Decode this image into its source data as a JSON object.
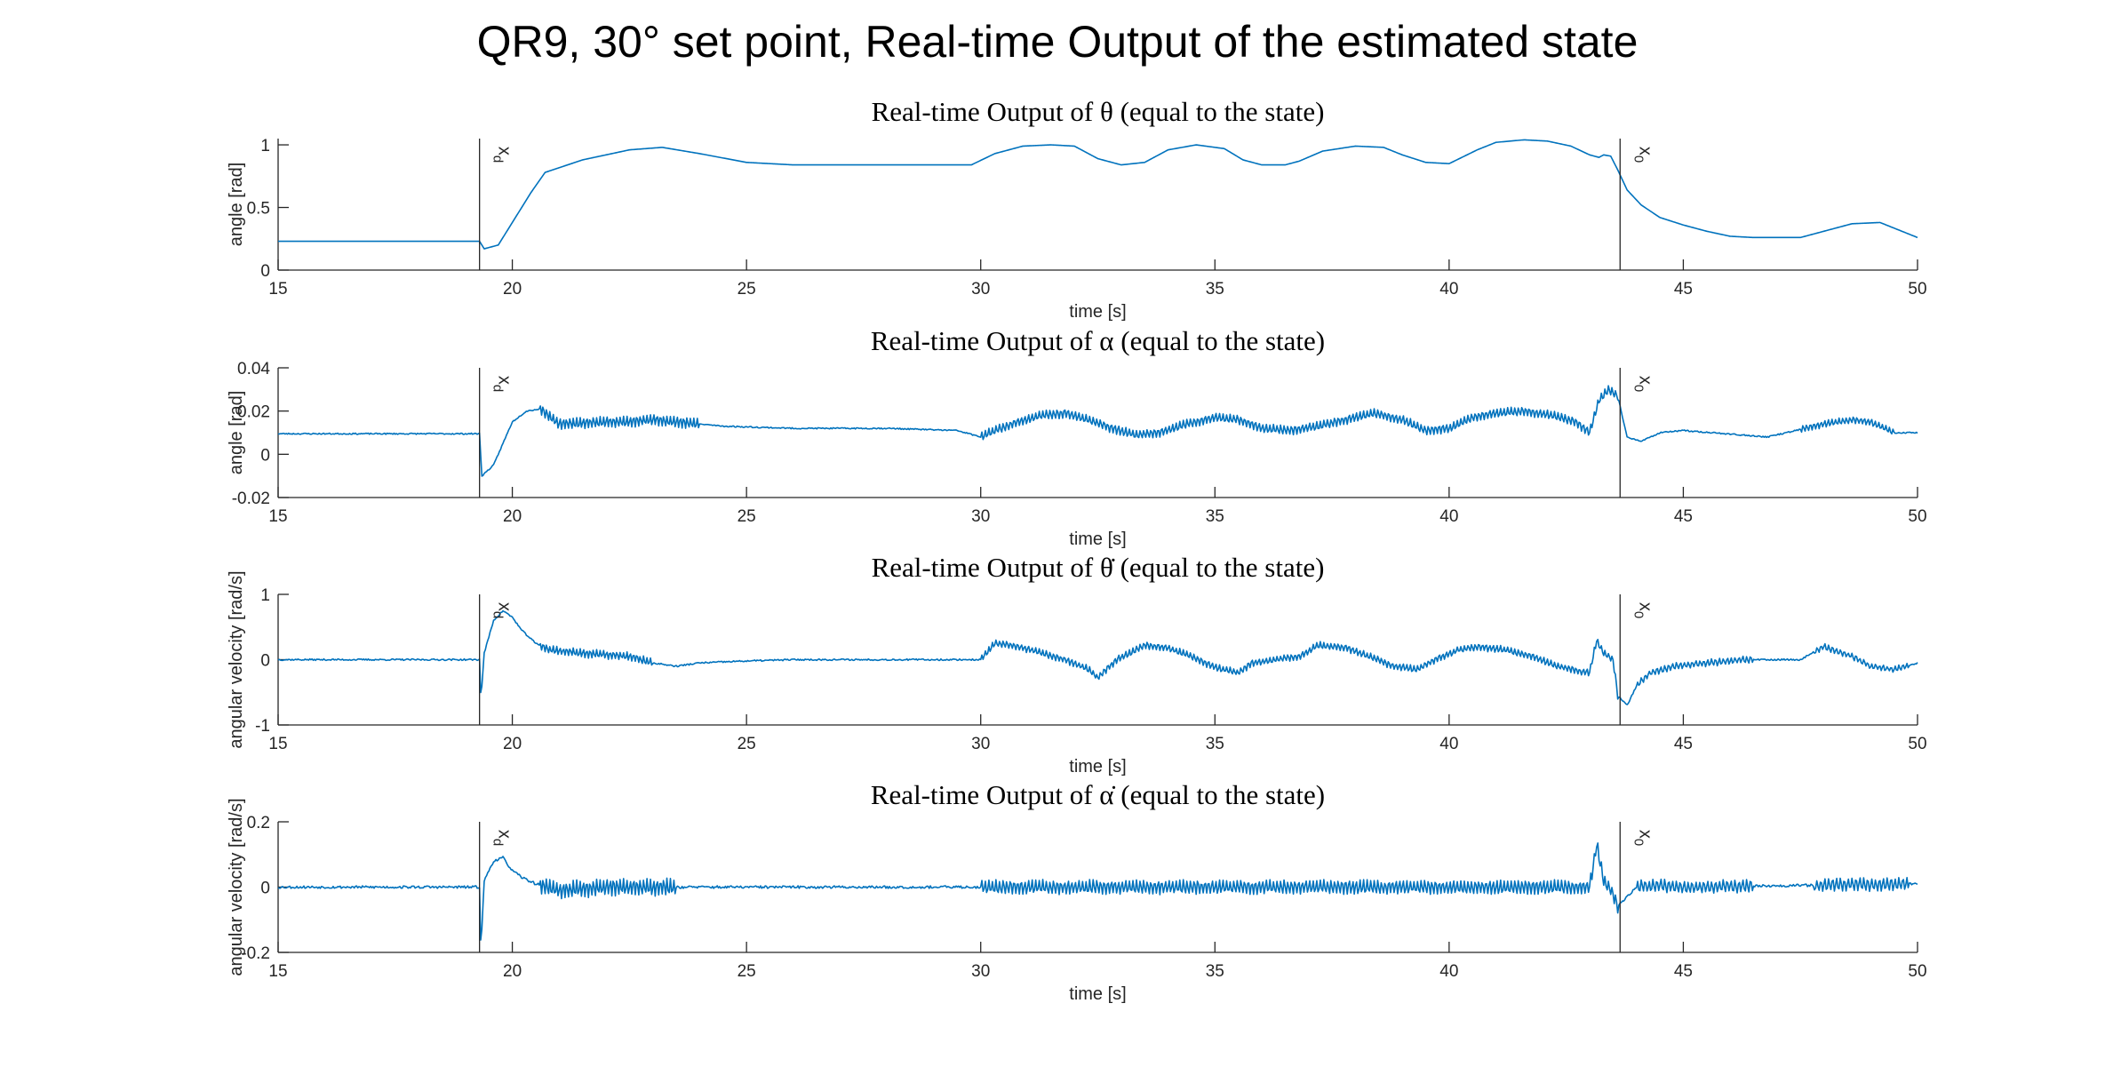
{
  "figure_title": "QR9, 30° set point, Real-time Output of the estimated state",
  "colors": {
    "line": "#0072BD",
    "axes": "#262626",
    "marker": "#262626",
    "background": "#ffffff"
  },
  "chart_data": [
    {
      "type": "line",
      "title": "Real-time Output of θ (equal to the state)",
      "xlabel": "time [s]",
      "ylabel": "angle [rad]",
      "xlim": [
        15,
        50
      ],
      "ylim": [
        0,
        1.05
      ],
      "xticks": [
        15,
        20,
        25,
        30,
        35,
        40,
        45,
        50
      ],
      "xticklabels": [
        "15",
        "20",
        "25",
        "30",
        "35",
        "40",
        "45",
        "50"
      ],
      "yticks": [
        0,
        0.5,
        1
      ],
      "yticklabels": [
        "0",
        "0.5",
        "1"
      ],
      "grid": false,
      "series": [
        {
          "x": [
            15,
            19.3,
            19.4,
            19.7,
            20.0,
            20.4,
            20.7,
            21.5,
            22.5,
            23.2,
            24.0,
            25.0,
            26.0,
            27.5,
            29.0,
            29.8,
            30.3,
            30.9,
            31.5,
            32.0,
            32.5,
            33.0,
            33.5,
            34.0,
            34.6,
            35.2,
            35.6,
            36.0,
            36.5,
            36.8,
            37.3,
            38.0,
            38.6,
            39.0,
            39.5,
            40.0,
            40.6,
            41.0,
            41.6,
            42.1,
            42.6,
            43.0,
            43.2,
            43.3,
            43.45,
            43.6,
            43.8,
            44.1,
            44.5,
            45.0,
            45.5,
            46.0,
            46.5,
            47.0,
            47.5,
            48.0,
            48.6,
            49.2,
            49.6,
            50.0
          ],
          "y": [
            0.23,
            0.23,
            0.17,
            0.2,
            0.38,
            0.62,
            0.78,
            0.88,
            0.96,
            0.98,
            0.93,
            0.86,
            0.84,
            0.84,
            0.84,
            0.84,
            0.93,
            0.99,
            1.0,
            0.99,
            0.89,
            0.84,
            0.86,
            0.96,
            1.0,
            0.97,
            0.88,
            0.84,
            0.84,
            0.87,
            0.95,
            0.99,
            0.98,
            0.92,
            0.86,
            0.85,
            0.96,
            1.02,
            1.04,
            1.03,
            0.99,
            0.92,
            0.9,
            0.92,
            0.91,
            0.8,
            0.64,
            0.52,
            0.42,
            0.36,
            0.31,
            0.27,
            0.26,
            0.26,
            0.26,
            0.31,
            0.37,
            0.38,
            0.32,
            0.26
          ]
        }
      ],
      "markers": [
        {
          "x": 19.3,
          "label": "x",
          "sub": "d"
        },
        {
          "x": 43.65,
          "label": "x",
          "sub": "0"
        }
      ],
      "noise": {
        "seed": 11,
        "base": 0.0,
        "bands": []
      }
    },
    {
      "type": "line",
      "title": "Real-time Output of α (equal to the state)",
      "xlabel": "time [s]",
      "ylabel": "angle [rad]",
      "xlim": [
        15,
        50
      ],
      "ylim": [
        -0.02,
        0.04
      ],
      "xticks": [
        15,
        20,
        25,
        30,
        35,
        40,
        45,
        50
      ],
      "xticklabels": [
        "15",
        "20",
        "25",
        "30",
        "35",
        "40",
        "45",
        "50"
      ],
      "yticks": [
        -0.02,
        0,
        0.02,
        0.04
      ],
      "yticklabels": [
        "-0.02",
        "0",
        "0.02",
        "0.04"
      ],
      "grid": false,
      "series": [
        {
          "x": [
            15,
            19.3,
            19.35,
            19.6,
            19.8,
            20.0,
            20.3,
            20.6,
            21.0,
            21.5,
            22.0,
            22.5,
            23.0,
            23.5,
            24.5,
            26.0,
            28.0,
            29.5,
            30.0,
            30.3,
            30.8,
            31.3,
            31.8,
            32.3,
            32.8,
            33.3,
            33.8,
            34.4,
            35.0,
            35.5,
            36.0,
            36.6,
            37.2,
            37.8,
            38.4,
            39.0,
            39.5,
            40.0,
            40.5,
            41.0,
            41.6,
            42.2,
            42.7,
            43.0,
            43.2,
            43.4,
            43.6,
            43.8,
            44.1,
            44.5,
            45.0,
            45.6,
            46.2,
            46.8,
            47.4,
            48.0,
            48.6,
            49.0,
            49.5,
            50.0
          ],
          "y": [
            0.0095,
            0.0095,
            -0.01,
            -0.005,
            0.005,
            0.015,
            0.02,
            0.021,
            0.014,
            0.0145,
            0.015,
            0.015,
            0.016,
            0.015,
            0.013,
            0.012,
            0.012,
            0.011,
            0.008,
            0.011,
            0.015,
            0.018,
            0.019,
            0.016,
            0.012,
            0.009,
            0.01,
            0.014,
            0.017,
            0.016,
            0.012,
            0.011,
            0.013,
            0.016,
            0.019,
            0.016,
            0.011,
            0.012,
            0.017,
            0.019,
            0.02,
            0.018,
            0.015,
            0.01,
            0.025,
            0.03,
            0.027,
            0.008,
            0.006,
            0.01,
            0.011,
            0.01,
            0.009,
            0.008,
            0.011,
            0.014,
            0.016,
            0.015,
            0.01,
            0.01
          ]
        }
      ],
      "markers": [
        {
          "x": 19.3,
          "label": "x",
          "sub": "d"
        },
        {
          "x": 43.65,
          "label": "x",
          "sub": "0"
        }
      ],
      "noise": {
        "seed": 23,
        "base": 0.0003,
        "bands": [
          {
            "from": 20.6,
            "to": 24.0,
            "amp": 0.0025,
            "freq": 14
          },
          {
            "from": 30.0,
            "to": 43.6,
            "amp": 0.002,
            "freq": 13
          },
          {
            "from": 47.5,
            "to": 49.5,
            "amp": 0.0015,
            "freq": 13
          }
        ]
      }
    },
    {
      "type": "line",
      "title": "Real-time Output of θ̇ (equal to the state)",
      "xlabel": "time [s]",
      "ylabel": "angular velocity [rad/s]",
      "xlim": [
        15,
        50
      ],
      "ylim": [
        -1,
        1
      ],
      "xticks": [
        15,
        20,
        25,
        30,
        35,
        40,
        45,
        50
      ],
      "xticklabels": [
        "15",
        "20",
        "25",
        "30",
        "35",
        "40",
        "45",
        "50"
      ],
      "yticks": [
        -1,
        0,
        1
      ],
      "yticklabels": [
        "-1",
        "0",
        "1"
      ],
      "grid": false,
      "series": [
        {
          "x": [
            15,
            19.3,
            19.33,
            19.4,
            19.6,
            19.8,
            20.0,
            20.2,
            20.5,
            20.8,
            21.5,
            22.5,
            23.0,
            23.5,
            24.0,
            25.0,
            26.0,
            27.5,
            29.5,
            30.0,
            30.3,
            30.8,
            31.3,
            31.8,
            32.3,
            32.5,
            32.9,
            33.5,
            34.0,
            34.5,
            35.0,
            35.5,
            35.8,
            36.3,
            36.8,
            37.2,
            37.8,
            38.4,
            38.8,
            39.3,
            39.7,
            40.2,
            40.6,
            41.2,
            41.8,
            42.3,
            42.8,
            43.0,
            43.15,
            43.3,
            43.5,
            43.6,
            43.8,
            44.0,
            44.3,
            44.8,
            45.5,
            46.3,
            47.0,
            47.5,
            48.0,
            48.6,
            49.0,
            49.5,
            50.0
          ],
          "y": [
            0.0,
            0.0,
            -0.6,
            0.1,
            0.6,
            0.75,
            0.65,
            0.45,
            0.25,
            0.15,
            0.1,
            0.05,
            -0.05,
            -0.1,
            -0.05,
            -0.02,
            0.0,
            0.0,
            0.0,
            0.0,
            0.25,
            0.2,
            0.1,
            0.0,
            -0.15,
            -0.28,
            0.0,
            0.22,
            0.18,
            0.05,
            -0.12,
            -0.2,
            -0.05,
            0.0,
            0.05,
            0.22,
            0.18,
            0.02,
            -0.1,
            -0.15,
            0.0,
            0.15,
            0.2,
            0.15,
            0.05,
            -0.1,
            -0.18,
            -0.2,
            0.3,
            0.1,
            0.0,
            -0.55,
            -0.7,
            -0.4,
            -0.2,
            -0.1,
            -0.05,
            0.0,
            0.0,
            0.0,
            0.2,
            0.05,
            -0.1,
            -0.15,
            -0.05
          ]
        }
      ],
      "markers": [
        {
          "x": 19.3,
          "label": "x",
          "sub": "d"
        },
        {
          "x": 43.65,
          "label": "x",
          "sub": "0"
        }
      ],
      "noise": {
        "seed": 37,
        "base": 0.012,
        "bands": [
          {
            "from": 20.6,
            "to": 23.0,
            "amp": 0.06,
            "freq": 14
          },
          {
            "from": 30.0,
            "to": 43.6,
            "amp": 0.05,
            "freq": 13
          },
          {
            "from": 44.0,
            "to": 46.5,
            "amp": 0.05,
            "freq": 12
          },
          {
            "from": 47.8,
            "to": 49.8,
            "amp": 0.04,
            "freq": 12
          }
        ]
      }
    },
    {
      "type": "line",
      "title": "Real-time Output of α̇ (equal to the state)",
      "xlabel": "time [s]",
      "ylabel": "angular velocity [rad/s]",
      "xlim": [
        15,
        50
      ],
      "ylim": [
        -0.2,
        0.2
      ],
      "xticks": [
        15,
        20,
        25,
        30,
        35,
        40,
        45,
        50
      ],
      "xticklabels": [
        "15",
        "20",
        "25",
        "30",
        "35",
        "40",
        "45",
        "50"
      ],
      "yticks": [
        -0.2,
        0,
        0.2
      ],
      "yticklabels": [
        "-0.2",
        "0",
        "0.2"
      ],
      "grid": false,
      "series": [
        {
          "x": [
            15,
            19.3,
            19.33,
            19.4,
            19.6,
            19.8,
            20.0,
            20.2,
            20.5,
            21.0,
            22.0,
            24.0,
            26.0,
            28.0,
            29.5,
            30.0,
            43.0,
            43.15,
            43.3,
            43.5,
            43.6,
            43.8,
            44.0,
            44.4,
            45.0,
            50.0
          ],
          "y": [
            0.0,
            0.0,
            -0.19,
            0.02,
            0.08,
            0.09,
            0.05,
            0.03,
            0.01,
            -0.01,
            0.0,
            0.0,
            0.0,
            0.0,
            0.0,
            0.0,
            0.0,
            0.13,
            0.02,
            -0.02,
            -0.06,
            -0.03,
            0.0,
            0.005,
            0.0,
            0.01
          ]
        }
      ],
      "markers": [
        {
          "x": 19.3,
          "label": "x",
          "sub": "d"
        },
        {
          "x": 43.65,
          "label": "x",
          "sub": "0"
        }
      ],
      "noise": {
        "seed": 53,
        "base": 0.004,
        "bands": [
          {
            "from": 20.6,
            "to": 23.5,
            "amp": 0.025,
            "freq": 14
          },
          {
            "from": 30.0,
            "to": 43.6,
            "amp": 0.02,
            "freq": 13
          },
          {
            "from": 44.0,
            "to": 46.5,
            "amp": 0.018,
            "freq": 12
          },
          {
            "from": 47.8,
            "to": 49.8,
            "amp": 0.018,
            "freq": 12
          }
        ]
      }
    }
  ]
}
